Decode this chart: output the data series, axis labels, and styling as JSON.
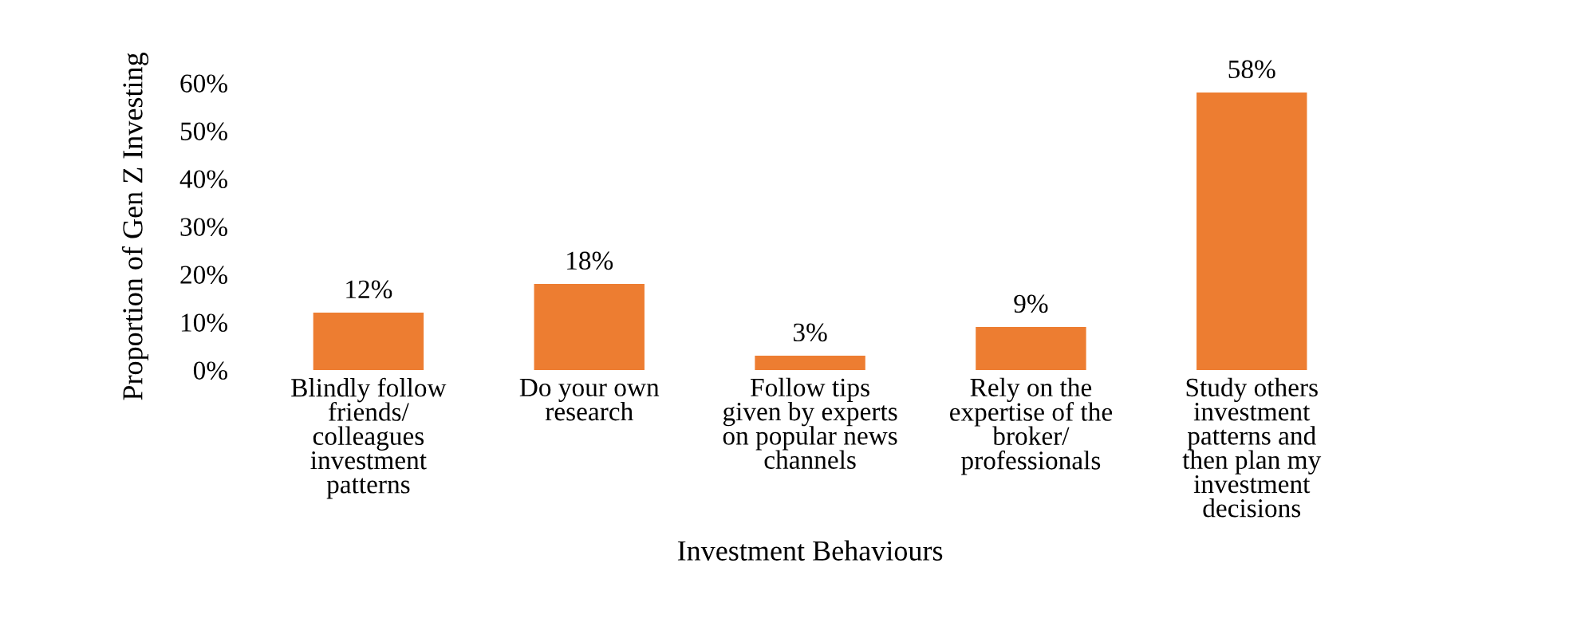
{
  "chart_data": {
    "type": "bar",
    "xlabel": "Investment Behaviours",
    "ylabel": "Proportion of Gen Z Investing",
    "categories": [
      "Blindly follow friends/ colleagues investment patterns",
      "Do your own research",
      "Follow tips given by experts on popular news channels",
      "Rely on the expertise of the broker/ professionals",
      "Study others investment patterns and then plan my investment decisions"
    ],
    "values": [
      12,
      18,
      3,
      9,
      58
    ],
    "color": "#ed7d31",
    "value_labels": [
      "12%",
      "18%",
      "3%",
      "9%",
      "58%"
    ],
    "ylim": [
      0,
      60
    ],
    "yticks": [
      {
        "value": 0,
        "label": "0%"
      },
      {
        "value": 10,
        "label": "10%"
      },
      {
        "value": 20,
        "label": "20%"
      },
      {
        "value": 30,
        "label": "30%"
      },
      {
        "value": 40,
        "label": "40%"
      },
      {
        "value": 50,
        "label": "50%"
      },
      {
        "value": 60,
        "label": "60%"
      }
    ],
    "grid": false,
    "legend": false
  }
}
